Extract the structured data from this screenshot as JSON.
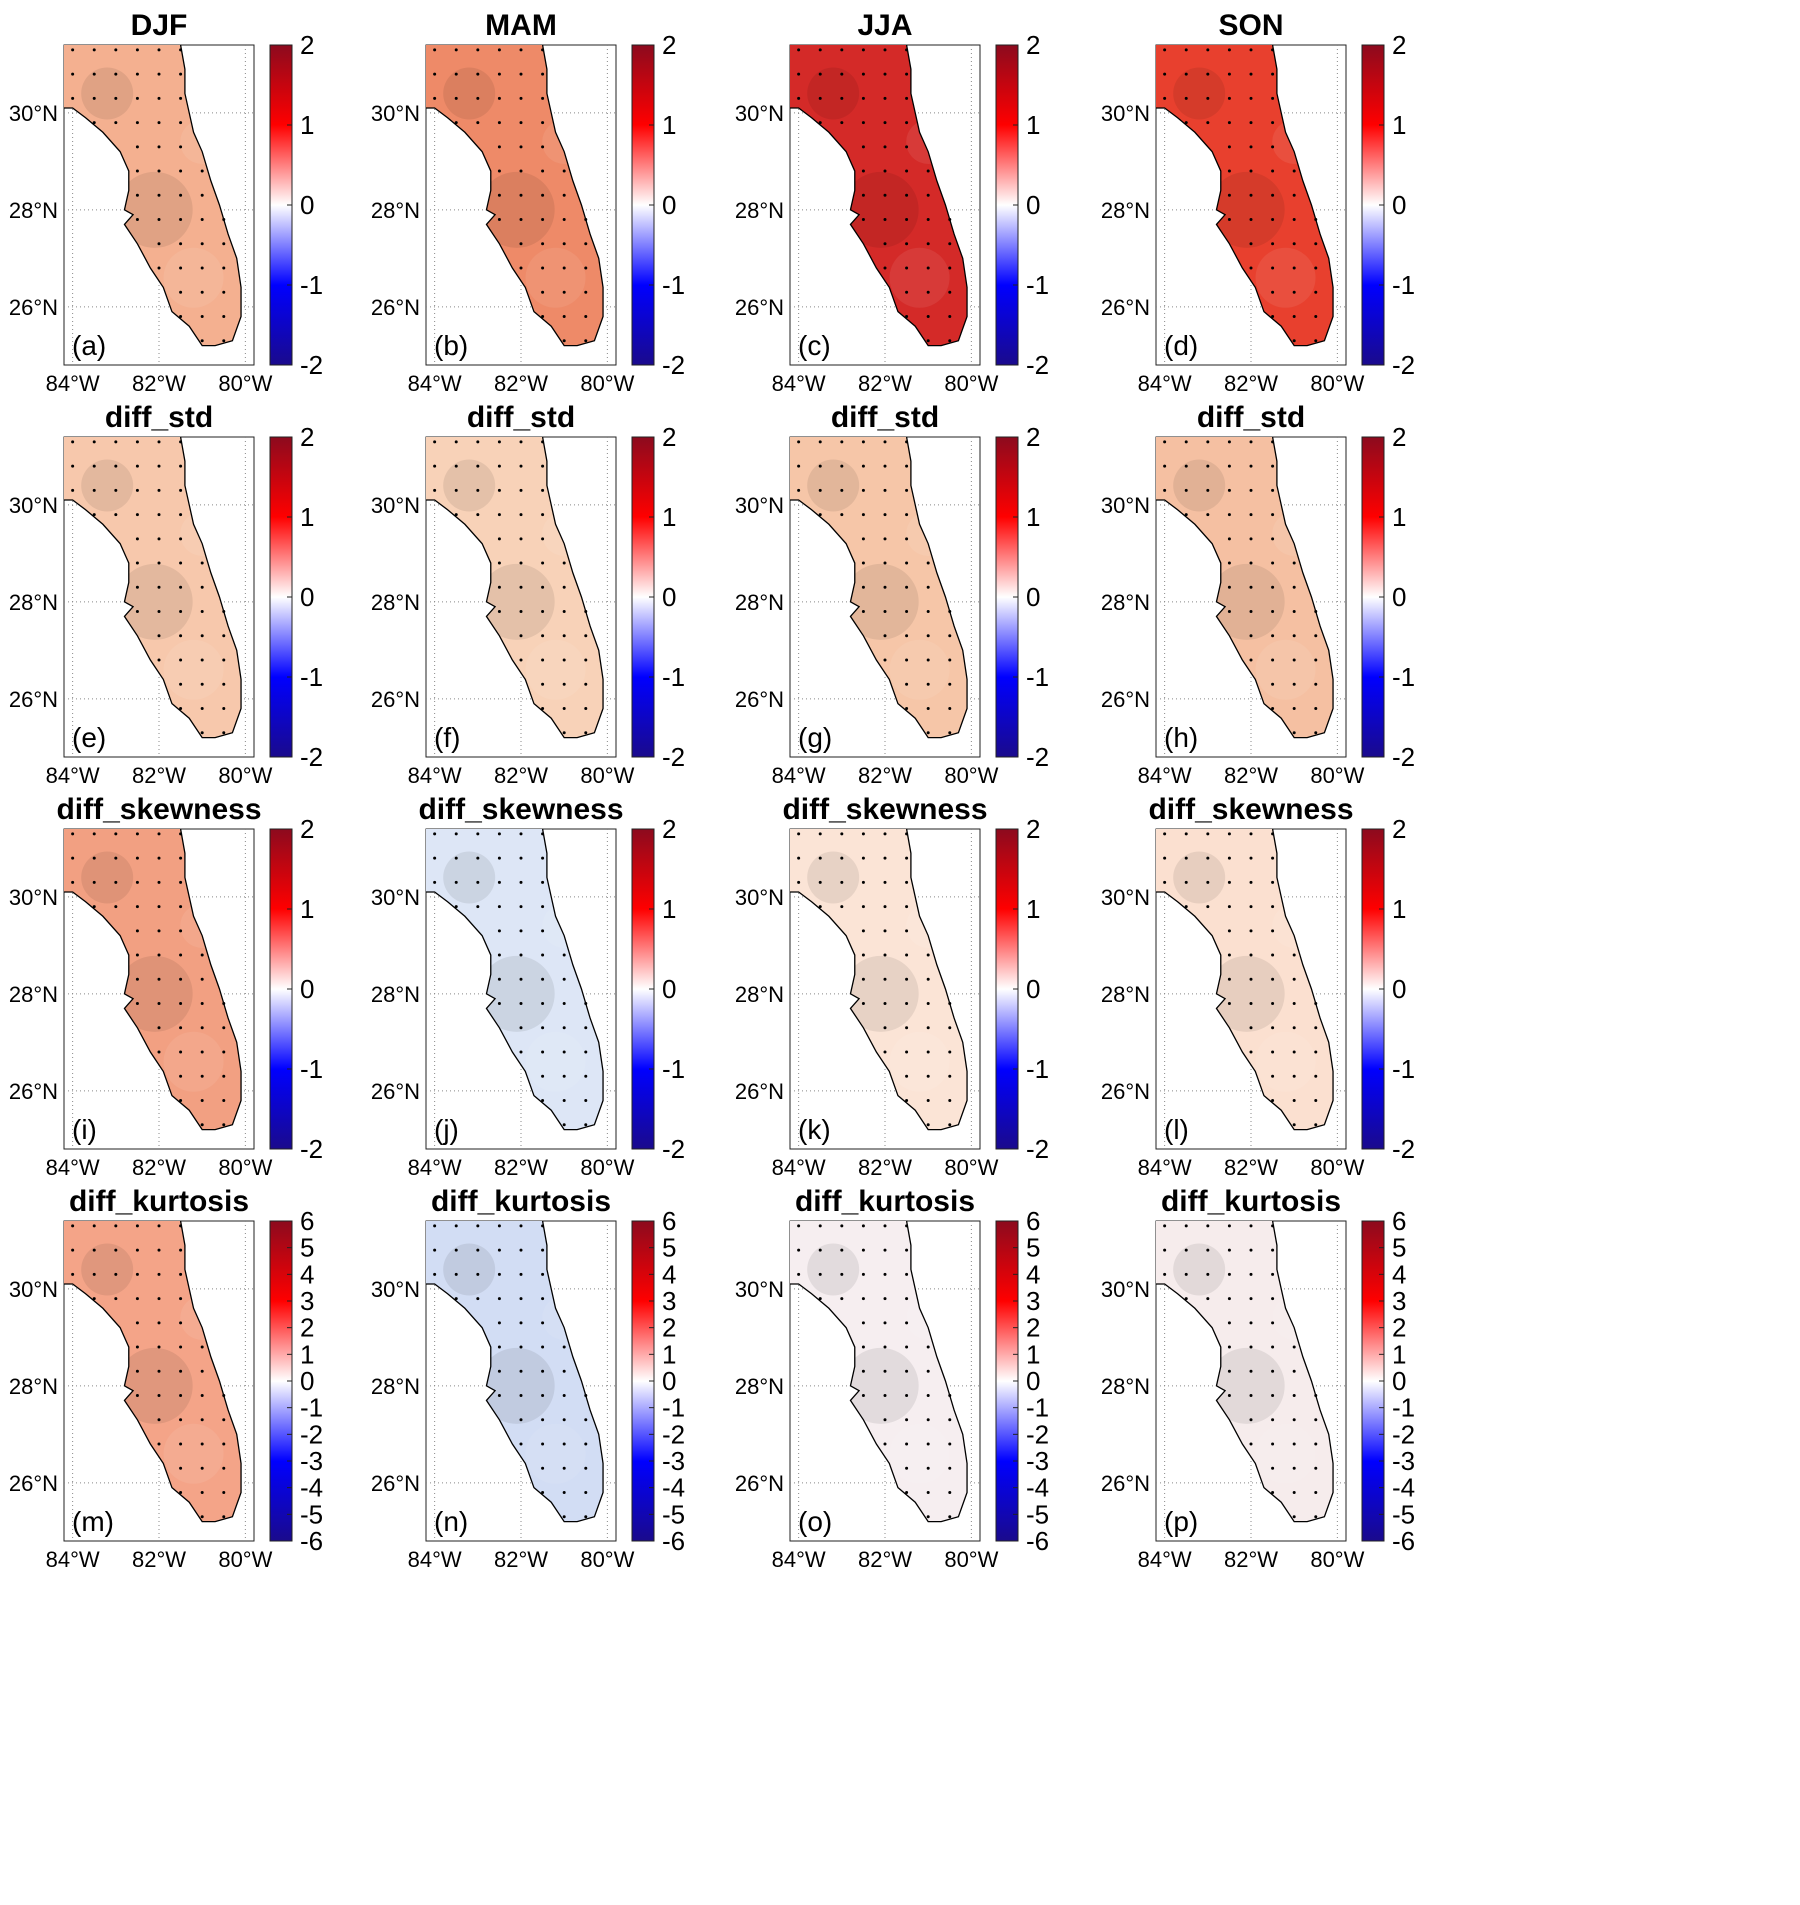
{
  "grid": {
    "lat_ticks": [
      "30°N",
      "28°N",
      "26°N"
    ],
    "lon_ticks": [
      "84°W",
      "82°W",
      "80°W"
    ]
  },
  "colorbar": {
    "colors": [
      "#1a0a8c",
      "#0000ff",
      "#ffffff",
      "#ff0000",
      "#8c0a1e"
    ],
    "small": {
      "ticks": [
        "2",
        "1",
        "0",
        "-1",
        "-2"
      ]
    },
    "large": {
      "ticks": [
        "6",
        "5",
        "4",
        "3",
        "2",
        "1",
        "0",
        "-1",
        "-2",
        "-3",
        "-4",
        "-5",
        "-6"
      ]
    }
  },
  "panels": [
    {
      "title": "DJF",
      "label": "(a)",
      "scale": "small",
      "fill": "#f4b090"
    },
    {
      "title": "MAM",
      "label": "(b)",
      "scale": "small",
      "fill": "#ee8a68"
    },
    {
      "title": "JJA",
      "label": "(c)",
      "scale": "small",
      "fill": "#d42a28"
    },
    {
      "title": "SON",
      "label": "(d)",
      "scale": "small",
      "fill": "#e8402e"
    },
    {
      "title": "diff_std",
      "label": "(e)",
      "scale": "small",
      "fill": "#f7c8ac"
    },
    {
      "title": "diff_std",
      "label": "(f)",
      "scale": "small",
      "fill": "#f8d2b8"
    },
    {
      "title": "diff_std",
      "label": "(g)",
      "scale": "small",
      "fill": "#f6c6a8"
    },
    {
      "title": "diff_std",
      "label": "(h)",
      "scale": "small",
      "fill": "#f5c0a2"
    },
    {
      "title": "diff_skewness",
      "label": "(i)",
      "scale": "small",
      "fill": "#f2a082"
    },
    {
      "title": "diff_skewness",
      "label": "(j)",
      "scale": "small",
      "fill": "#dde6f6"
    },
    {
      "title": "diff_skewness",
      "label": "(k)",
      "scale": "small",
      "fill": "#fbe4d6"
    },
    {
      "title": "diff_skewness",
      "label": "(l)",
      "scale": "small",
      "fill": "#fbe0d0"
    },
    {
      "title": "diff_kurtosis",
      "label": "(m)",
      "scale": "large",
      "fill": "#f4a488"
    },
    {
      "title": "diff_kurtosis",
      "label": "(n)",
      "scale": "large",
      "fill": "#d2ddf4"
    },
    {
      "title": "diff_kurtosis",
      "label": "(o)",
      "scale": "large",
      "fill": "#f6eef0"
    },
    {
      "title": "diff_kurtosis",
      "label": "(p)",
      "scale": "large",
      "fill": "#f6ecec"
    }
  ]
}
